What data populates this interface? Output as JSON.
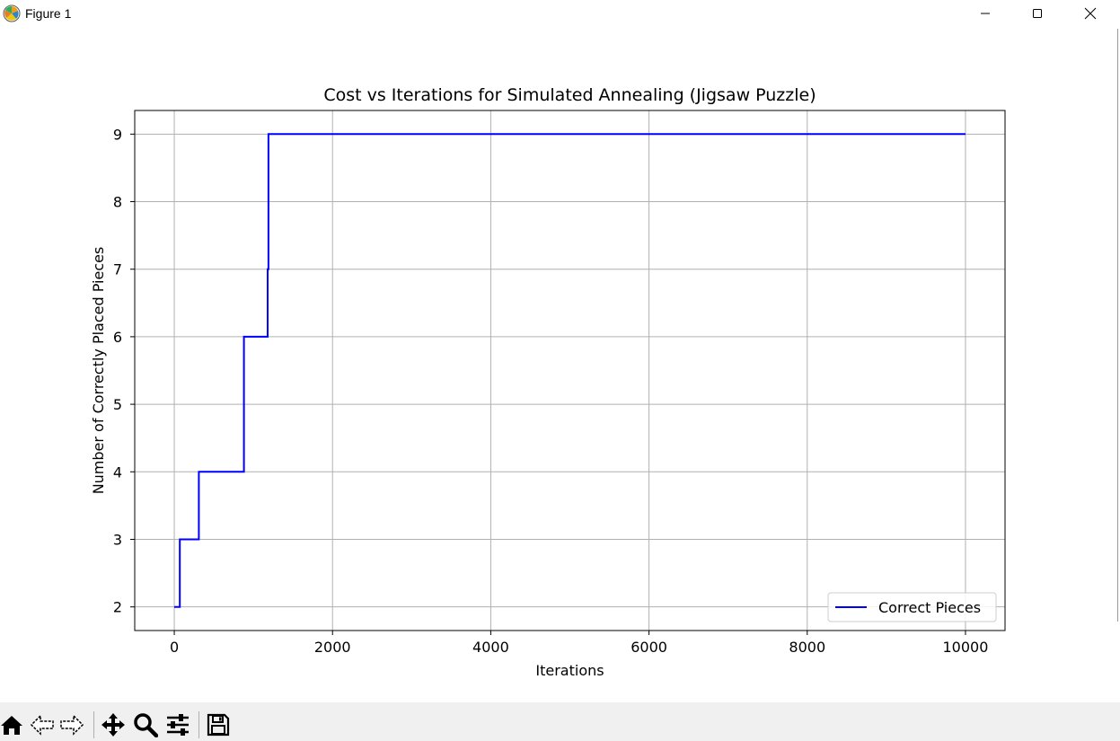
{
  "window": {
    "title": "Figure 1"
  },
  "toolbar": {
    "buttons": [
      "home-icon",
      "back-icon",
      "forward-icon",
      "pan-icon",
      "zoom-icon",
      "configure-subplots-icon",
      "save-icon"
    ]
  },
  "colors": {
    "line": "#0000ff",
    "grid": "#b0b0b0",
    "toolbar_bg": "#f0f0f0"
  },
  "chart_data": {
    "type": "line",
    "title": "Cost vs Iterations for Simulated Annealing (Jigsaw Puzzle)",
    "xlabel": "Iterations",
    "ylabel": "Number of Correctly Placed Pieces",
    "xlim": [
      -500,
      10500
    ],
    "ylim": [
      1.65,
      9.35
    ],
    "xticks": [
      0,
      2000,
      4000,
      6000,
      8000,
      10000
    ],
    "xtick_labels": [
      "0",
      "2000",
      "4000",
      "6000",
      "8000",
      "10000"
    ],
    "yticks": [
      2,
      3,
      4,
      5,
      6,
      7,
      8,
      9
    ],
    "ytick_labels": [
      "2",
      "3",
      "4",
      "5",
      "6",
      "7",
      "8",
      "9"
    ],
    "grid": true,
    "legend_position": "lower-right",
    "series": [
      {
        "name": "Correct Pieces",
        "color": "#0000ff",
        "x": [
          0,
          70,
          70,
          310,
          310,
          880,
          880,
          1180,
          1180,
          1190,
          1190,
          10000
        ],
        "y": [
          2,
          2,
          3,
          3,
          4,
          4,
          6,
          6,
          7,
          7,
          9,
          9
        ]
      }
    ]
  }
}
